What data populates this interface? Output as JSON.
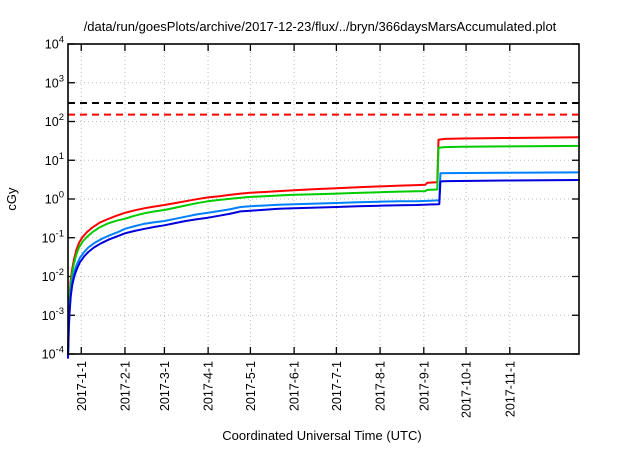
{
  "chart_data": {
    "type": "line",
    "title": "/data/run/goesPlots/archive/2017-12-23/flux/../bryn/366daysMarsAccumulated.plot",
    "xlabel": "Coordinated Universal Time (UTC)",
    "ylabel": "cGy",
    "y_scale": "log10",
    "y_tick_exponents": [
      4,
      3,
      2,
      1,
      0,
      -1,
      -2,
      -3,
      -4
    ],
    "ylim": [
      0.0001,
      10000.0
    ],
    "x_range_days": [
      -9.4,
      353.1
    ],
    "grid": true,
    "legend": "none",
    "x_ticks": [
      {
        "label": "2017-1-1",
        "day": 0
      },
      {
        "label": "2017-2-1",
        "day": 31
      },
      {
        "label": "2017-3-1",
        "day": 59
      },
      {
        "label": "2017-4-1",
        "day": 90
      },
      {
        "label": "2017-5-1",
        "day": 120
      },
      {
        "label": "2017-6-1",
        "day": 151
      },
      {
        "label": "2017-7-1",
        "day": 181
      },
      {
        "label": "2017-8-1",
        "day": 212
      },
      {
        "label": "2017-9-1",
        "day": 243
      },
      {
        "label": "2017-10-1",
        "day": 273
      },
      {
        "label": "2017-11-1",
        "day": 304
      }
    ],
    "thresholds": [
      {
        "name": "upper-dose-limit",
        "value_cGy": 300,
        "color": "#000000",
        "style": "dashed"
      },
      {
        "name": "lower-dose-limit",
        "value_cGy": 150,
        "color": "#ff0000",
        "style": "dashed"
      }
    ],
    "series": [
      {
        "name": "red-accumulated-dose",
        "color": "#ff0000",
        "points": [
          [
            -9.4,
            0.00012
          ],
          [
            -9.15,
            0.0003
          ],
          [
            -8.9,
            0.0009
          ],
          [
            -8.4,
            0.0026
          ],
          [
            -7.6,
            0.007
          ],
          [
            -6.6,
            0.014
          ],
          [
            -5.2,
            0.027
          ],
          [
            -3.5,
            0.048
          ],
          [
            -1.5,
            0.075
          ],
          [
            1,
            0.105
          ],
          [
            4,
            0.14
          ],
          [
            8,
            0.185
          ],
          [
            13,
            0.245
          ],
          [
            19,
            0.305
          ],
          [
            25,
            0.37
          ],
          [
            31,
            0.44
          ],
          [
            38,
            0.51
          ],
          [
            45,
            0.58
          ],
          [
            52,
            0.64
          ],
          [
            59,
            0.7
          ],
          [
            67,
            0.79
          ],
          [
            74,
            0.88
          ],
          [
            82,
            0.99
          ],
          [
            90,
            1.1
          ],
          [
            98,
            1.18
          ],
          [
            106,
            1.28
          ],
          [
            113,
            1.38
          ],
          [
            120,
            1.45
          ],
          [
            130,
            1.52
          ],
          [
            140,
            1.6
          ],
          [
            151,
            1.68
          ],
          [
            166,
            1.8
          ],
          [
            181,
            1.9
          ],
          [
            196,
            2.0
          ],
          [
            212,
            2.12
          ],
          [
            226,
            2.22
          ],
          [
            238,
            2.28
          ],
          [
            244,
            2.32
          ],
          [
            245.5,
            2.62
          ],
          [
            252,
            2.72
          ],
          [
            252.6,
            2.78
          ],
          [
            253.4,
            34
          ],
          [
            258,
            35.5
          ],
          [
            270,
            36.5
          ],
          [
            300,
            37.5
          ],
          [
            330,
            38.5
          ],
          [
            353.1,
            39
          ]
        ]
      },
      {
        "name": "green-accumulated-dose",
        "color": "#00cc00",
        "points": [
          [
            -9.4,
            0.0001
          ],
          [
            -9.15,
            0.00024
          ],
          [
            -8.9,
            0.0007
          ],
          [
            -8.4,
            0.002
          ],
          [
            -7.6,
            0.0055
          ],
          [
            -6.6,
            0.011
          ],
          [
            -5.2,
            0.021
          ],
          [
            -3.5,
            0.037
          ],
          [
            -1.5,
            0.057
          ],
          [
            1,
            0.08
          ],
          [
            4,
            0.105
          ],
          [
            8,
            0.14
          ],
          [
            13,
            0.185
          ],
          [
            19,
            0.235
          ],
          [
            25,
            0.275
          ],
          [
            31,
            0.31
          ],
          [
            38,
            0.37
          ],
          [
            45,
            0.43
          ],
          [
            52,
            0.48
          ],
          [
            59,
            0.52
          ],
          [
            67,
            0.6
          ],
          [
            74,
            0.68
          ],
          [
            82,
            0.78
          ],
          [
            90,
            0.88
          ],
          [
            98,
            0.95
          ],
          [
            106,
            1.02
          ],
          [
            113,
            1.08
          ],
          [
            120,
            1.13
          ],
          [
            130,
            1.18
          ],
          [
            140,
            1.23
          ],
          [
            151,
            1.28
          ],
          [
            166,
            1.33
          ],
          [
            181,
            1.38
          ],
          [
            196,
            1.44
          ],
          [
            212,
            1.5
          ],
          [
            226,
            1.55
          ],
          [
            238,
            1.58
          ],
          [
            244,
            1.6
          ],
          [
            245.5,
            1.72
          ],
          [
            252,
            1.76
          ],
          [
            252.6,
            1.78
          ],
          [
            253.4,
            21
          ],
          [
            258,
            21.8
          ],
          [
            270,
            22.3
          ],
          [
            300,
            22.8
          ],
          [
            330,
            23.2
          ],
          [
            353.1,
            23.5
          ]
        ]
      },
      {
        "name": "light-blue-accumulated-dose",
        "color": "#0080ff",
        "points": [
          [
            -9.4,
            9e-05
          ],
          [
            -9.1,
            0.0002
          ],
          [
            -8.8,
            0.00055
          ],
          [
            -8.3,
            0.0015
          ],
          [
            -7.5,
            0.0038
          ],
          [
            -6.4,
            0.0075
          ],
          [
            -5,
            0.013
          ],
          [
            -3,
            0.021
          ],
          [
            -1,
            0.03
          ],
          [
            2,
            0.043
          ],
          [
            5,
            0.056
          ],
          [
            9,
            0.072
          ],
          [
            14,
            0.092
          ],
          [
            20,
            0.115
          ],
          [
            26,
            0.14
          ],
          [
            31,
            0.17
          ],
          [
            38,
            0.2
          ],
          [
            45,
            0.23
          ],
          [
            52,
            0.25
          ],
          [
            59,
            0.27
          ],
          [
            67,
            0.31
          ],
          [
            74,
            0.35
          ],
          [
            82,
            0.4
          ],
          [
            90,
            0.44
          ],
          [
            98,
            0.49
          ],
          [
            106,
            0.55
          ],
          [
            113,
            0.62
          ],
          [
            120,
            0.65
          ],
          [
            130,
            0.68
          ],
          [
            140,
            0.71
          ],
          [
            151,
            0.73
          ],
          [
            166,
            0.76
          ],
          [
            181,
            0.79
          ],
          [
            196,
            0.82
          ],
          [
            212,
            0.85
          ],
          [
            226,
            0.87
          ],
          [
            238,
            0.88
          ],
          [
            247,
            0.9
          ],
          [
            253,
            0.92
          ],
          [
            254,
            0.93
          ],
          [
            254.8,
            4.6
          ],
          [
            260,
            4.65
          ],
          [
            300,
            4.75
          ],
          [
            353.1,
            4.85
          ]
        ]
      },
      {
        "name": "dark-blue-accumulated-dose",
        "color": "#0000dd",
        "points": [
          [
            -9.4,
            8e-05
          ],
          [
            -9.1,
            0.00017
          ],
          [
            -8.8,
            0.00045
          ],
          [
            -8.3,
            0.0012
          ],
          [
            -7.5,
            0.003
          ],
          [
            -6.4,
            0.006
          ],
          [
            -5,
            0.01
          ],
          [
            -3,
            0.016
          ],
          [
            -1,
            0.023
          ],
          [
            2,
            0.033
          ],
          [
            5,
            0.043
          ],
          [
            9,
            0.056
          ],
          [
            14,
            0.072
          ],
          [
            20,
            0.091
          ],
          [
            26,
            0.11
          ],
          [
            31,
            0.13
          ],
          [
            38,
            0.15
          ],
          [
            45,
            0.17
          ],
          [
            52,
            0.19
          ],
          [
            59,
            0.21
          ],
          [
            67,
            0.24
          ],
          [
            74,
            0.27
          ],
          [
            82,
            0.3
          ],
          [
            90,
            0.33
          ],
          [
            98,
            0.37
          ],
          [
            106,
            0.42
          ],
          [
            113,
            0.48
          ],
          [
            120,
            0.5
          ],
          [
            130,
            0.53
          ],
          [
            140,
            0.56
          ],
          [
            151,
            0.58
          ],
          [
            166,
            0.6
          ],
          [
            181,
            0.62
          ],
          [
            196,
            0.65
          ],
          [
            212,
            0.67
          ],
          [
            226,
            0.69
          ],
          [
            238,
            0.7
          ],
          [
            247,
            0.72
          ],
          [
            253,
            0.73
          ],
          [
            254,
            0.74
          ],
          [
            254.8,
            2.85
          ],
          [
            260,
            2.9
          ],
          [
            300,
            3.0
          ],
          [
            353.1,
            3.1
          ]
        ]
      }
    ]
  }
}
